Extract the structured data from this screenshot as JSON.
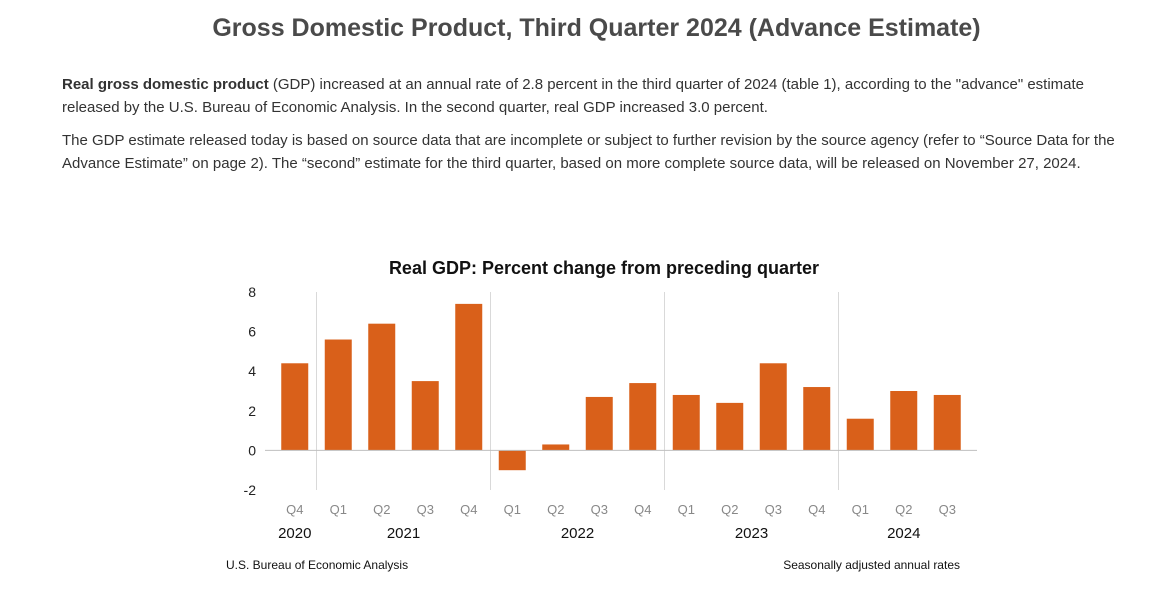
{
  "page": {
    "title": "Gross Domestic Product, Third Quarter 2024 (Advance Estimate)",
    "paragraph1": {
      "bold": "Real gross domestic product",
      "rest": " (GDP) increased at an annual rate of 2.8 percent in the third quarter of 2024 (table 1), according to the \"advance\" estimate released by the U.S. Bureau of Economic Analysis. In the second quarter, real GDP increased 3.0 percent."
    },
    "paragraph2": "The GDP estimate released today is based on source data that are incomplete or subject to further revision by the source agency (refer to “Source Data for the Advance Estimate” on page 2). The “second” estimate for the third quarter, based on more complete source data, will be released on November 27, 2024."
  },
  "chart_data": {
    "type": "bar",
    "title": "Real GDP:  Percent change from preceding quarter",
    "xlabel": "",
    "ylabel": "",
    "ylim": [
      -2,
      8
    ],
    "yticks": [
      8,
      6,
      4,
      2,
      0,
      -2
    ],
    "grid": "vertical year separators",
    "categories": [
      "Q4",
      "Q1",
      "Q2",
      "Q3",
      "Q4",
      "Q1",
      "Q2",
      "Q3",
      "Q4",
      "Q1",
      "Q2",
      "Q3",
      "Q4",
      "Q1",
      "Q2",
      "Q3"
    ],
    "values": [
      4.4,
      5.6,
      6.4,
      3.5,
      7.4,
      -1.0,
      0.3,
      2.7,
      3.4,
      2.8,
      2.4,
      4.4,
      3.2,
      1.6,
      3.0,
      2.8
    ],
    "year_groups": [
      {
        "label": "2020",
        "start": 0,
        "end": 0
      },
      {
        "label": "2021",
        "start": 1,
        "end": 4
      },
      {
        "label": "2022",
        "start": 5,
        "end": 8
      },
      {
        "label": "2023",
        "start": 9,
        "end": 12
      },
      {
        "label": "2024",
        "start": 13,
        "end": 15
      }
    ],
    "bar_color": "#d9601a",
    "source": "U.S. Bureau of Economic Analysis",
    "note": "Seasonally adjusted annual rates"
  }
}
